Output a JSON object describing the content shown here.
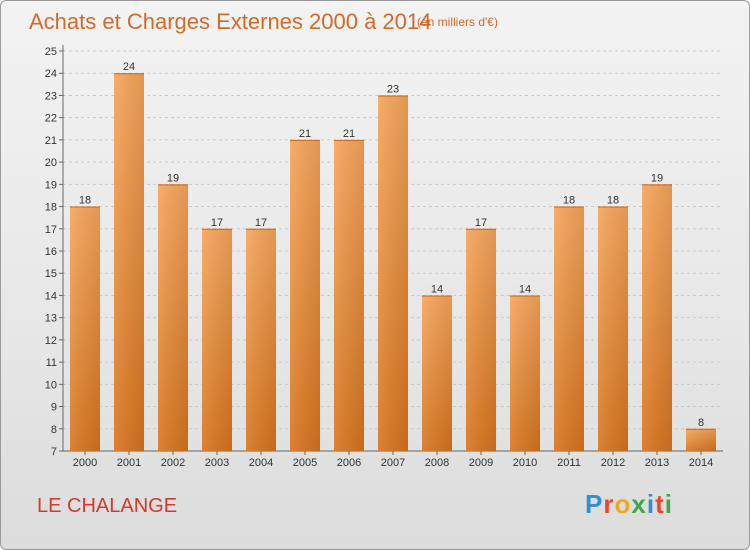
{
  "title": "Achats et Charges Externes 2000 à 2014",
  "subtitle": "(en milliers d'€)",
  "place_name": "LE CHALANGE",
  "logo": {
    "text": "Proxiti",
    "letters": [
      "P",
      "r",
      "o",
      "x",
      "i",
      "t",
      "i"
    ],
    "colors": [
      "#2e8fd8",
      "#e6492d",
      "#f2a51f",
      "#3ca84a",
      "#2e8fd8",
      "#e6492d",
      "#3ca84a"
    ]
  },
  "colors": {
    "bar_top": "#f5a55a",
    "bar_bottom": "#d6731e",
    "title": "#d46a2a",
    "place": "#d33a2a"
  },
  "chart_data": {
    "type": "bar",
    "categories": [
      "2000",
      "2001",
      "2002",
      "2003",
      "2004",
      "2005",
      "2006",
      "2007",
      "2008",
      "2009",
      "2010",
      "2011",
      "2012",
      "2013",
      "2014"
    ],
    "values": [
      18,
      24,
      19,
      17,
      17,
      21,
      21,
      23,
      14,
      17,
      14,
      18,
      18,
      19,
      8
    ],
    "ylim": [
      7,
      25
    ],
    "yticks": [
      7,
      8,
      9,
      10,
      11,
      12,
      13,
      14,
      15,
      16,
      17,
      18,
      19,
      20,
      21,
      22,
      23,
      24,
      25
    ],
    "grid": true,
    "data_labels": true
  }
}
